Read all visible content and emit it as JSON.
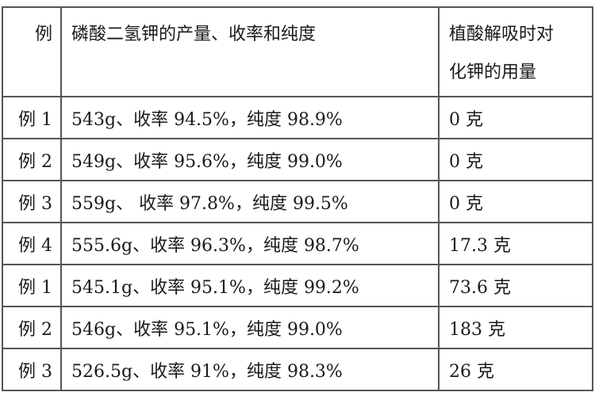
{
  "headers": {
    "col0": "例",
    "col1": "磷酸二氢钾的产量、收率和纯度",
    "col2_line1": "植酸解吸时对",
    "col2_line2": "化钾的用量"
  },
  "rows": [
    {
      "label": "例 1",
      "result": "543g、收率 94.5%，纯度 98.9%",
      "amount": "0 克"
    },
    {
      "label": "例 2",
      "result": "549g、收率 95.6%，纯度 99.0%",
      "amount": "0 克"
    },
    {
      "label": "例 3",
      "result": "559g、 收率 97.8%，纯度 99.5%",
      "amount": "0 克"
    },
    {
      "label": "例 4",
      "result": "555.6g、收率 96.3%，纯度 98.7%",
      "amount": "17.3 克"
    },
    {
      "label": "例 1",
      "result": "545.1g、收率 95.1%，纯度 99.2%",
      "amount": "73.6 克"
    },
    {
      "label": "例 2",
      "result": "546g、收率 95.1%，纯度 99.0%",
      "amount": "183 克"
    },
    {
      "label": "例 3",
      "result": "526.5g、收率 91%，纯度 98.3%",
      "amount": "26 克"
    }
  ]
}
